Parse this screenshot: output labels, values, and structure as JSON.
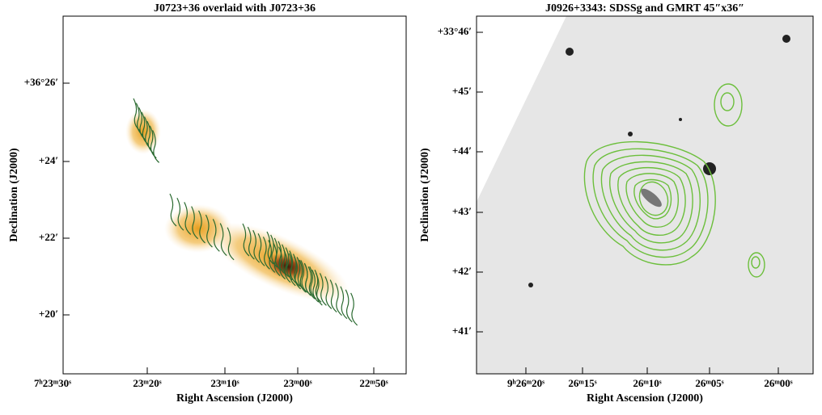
{
  "panels": [
    {
      "title": "J0723+36 overlaid with J0723+36",
      "x_label": "Right Ascension (J2000)",
      "y_label": "Declination (J2000)",
      "x_ticks": [
        "7ʰ23ᵐ30ˢ",
        "23ᵐ20ˢ",
        "23ᵐ10ˢ",
        "23ᵐ00ˢ",
        "22ᵐ50ˢ"
      ],
      "y_ticks": [
        "+36°26′",
        "+24′",
        "+22′",
        "+20′"
      ]
    },
    {
      "title": "J0926+3343: SDSSg and GMRT 45″x36″",
      "x_label": "Right Ascension (J2000)",
      "y_label": "Declination (J2000)",
      "x_ticks": [
        "9ʰ26ᵐ20ˢ",
        "26ᵐ15ˢ",
        "26ᵐ10ˢ",
        "26ᵐ05ˢ",
        "26ᵐ00ˢ"
      ],
      "y_ticks": [
        "+33°46′",
        "+45′",
        "+44′",
        "+43′",
        "+42′",
        "+41′"
      ]
    }
  ]
}
